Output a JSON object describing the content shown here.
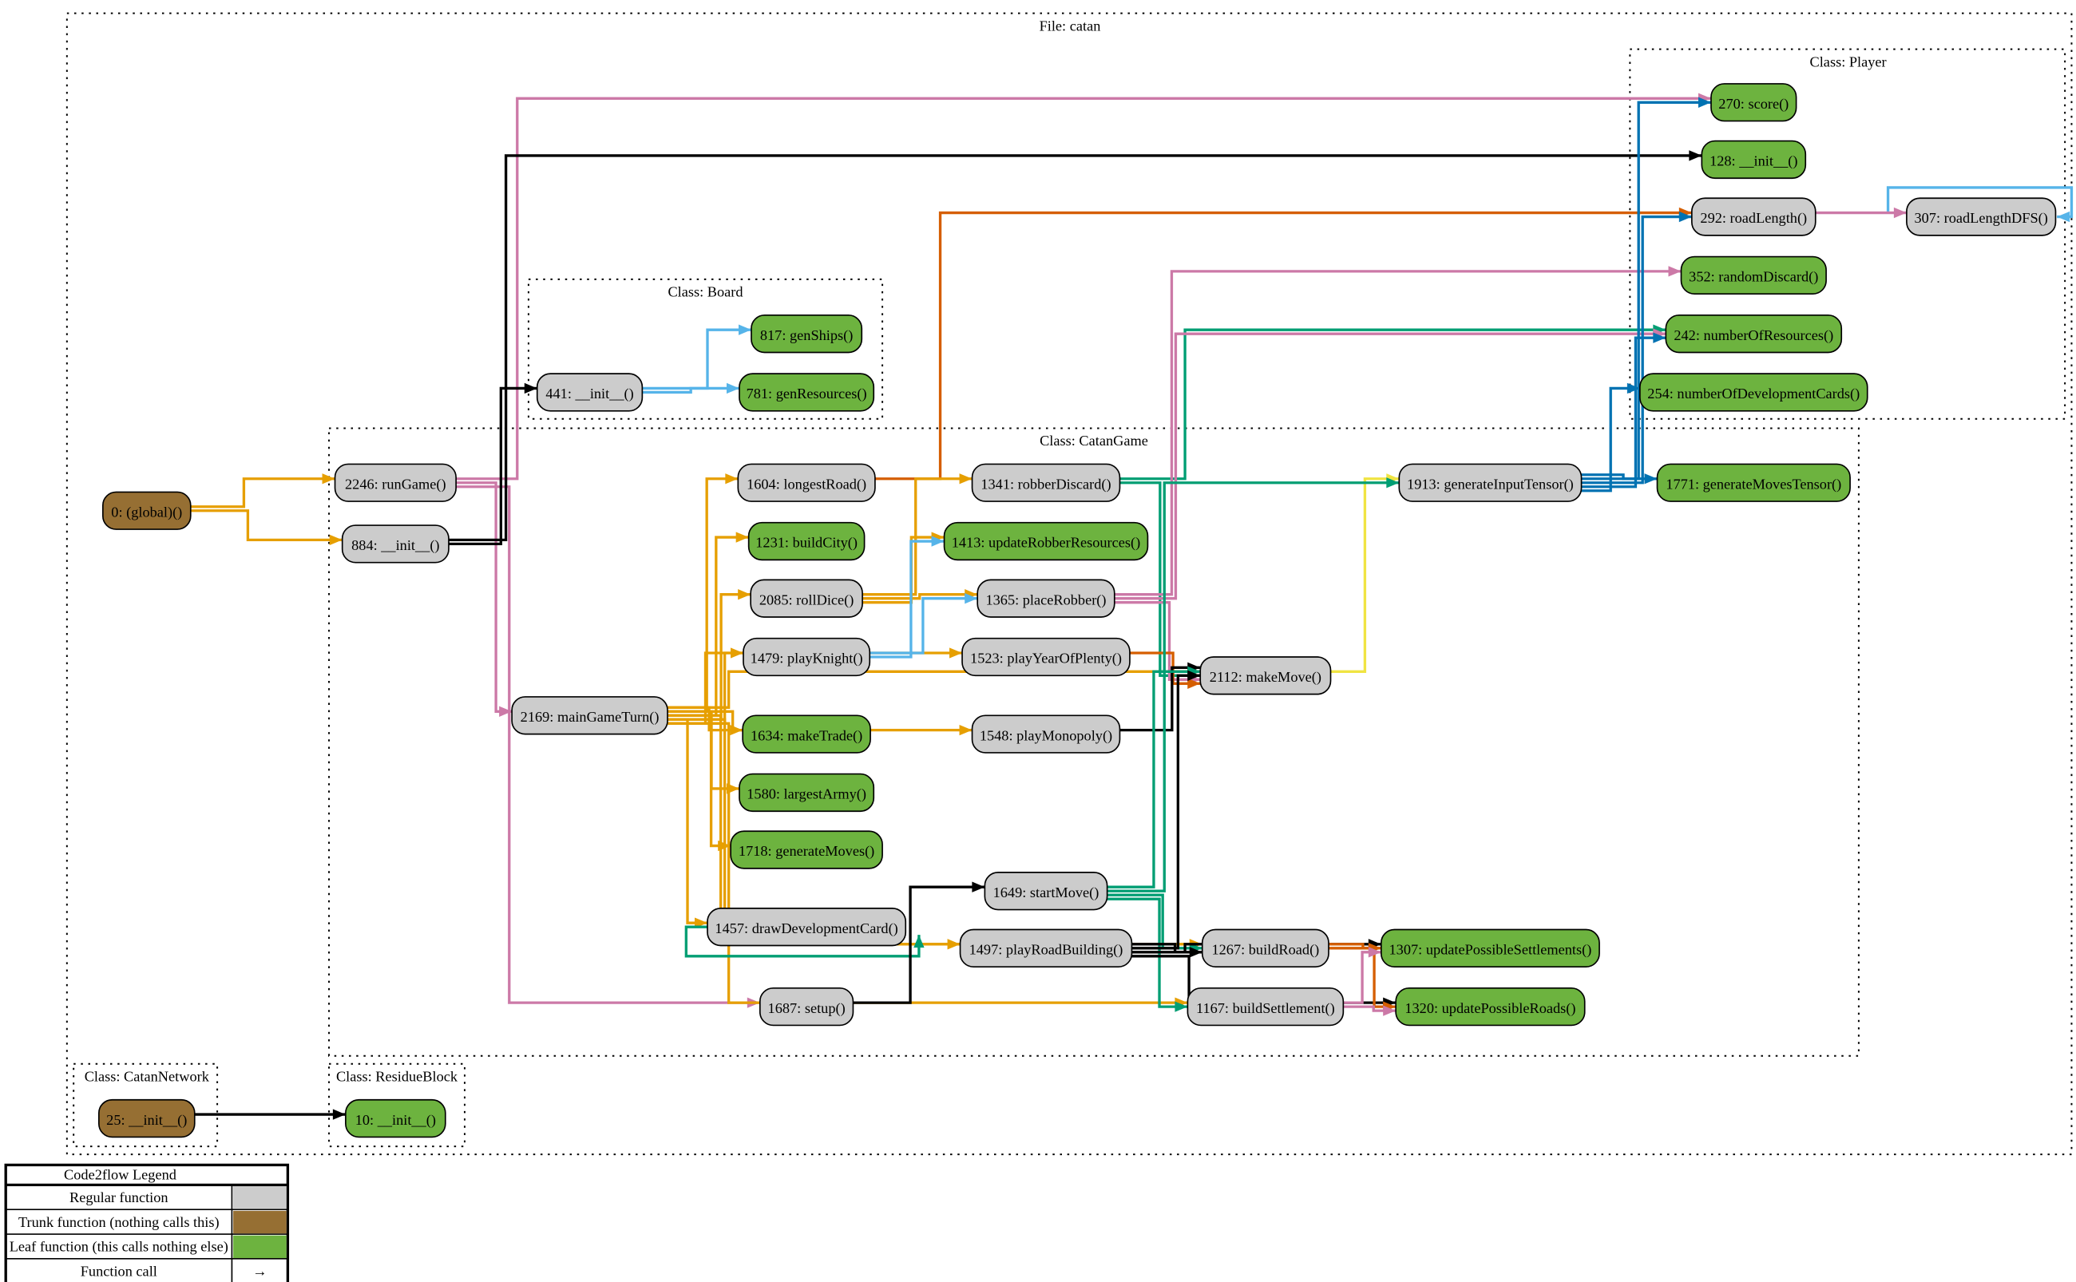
{
  "file_title": "File: catan",
  "colors": {
    "regular": "#cccccc",
    "trunk": "#966f33",
    "leaf": "#6db33f"
  },
  "clusters": [
    {
      "id": "board",
      "title": "Class: Board"
    },
    {
      "id": "player",
      "title": "Class: Player"
    },
    {
      "id": "catangame",
      "title": "Class: CatanGame"
    },
    {
      "id": "catannetwork",
      "title": "Class: CatanNetwork"
    },
    {
      "id": "residueblock",
      "title": "Class: ResidueBlock"
    }
  ],
  "nodes": [
    {
      "id": "global",
      "label": "0: (global)()",
      "kind": "trunk"
    },
    {
      "id": "runGame",
      "label": "2246: runGame()",
      "kind": "regular"
    },
    {
      "id": "init884",
      "label": "884: __init__()",
      "kind": "regular"
    },
    {
      "id": "init441",
      "label": "441: __init__()",
      "kind": "regular"
    },
    {
      "id": "genShips",
      "label": "817: genShips()",
      "kind": "leaf"
    },
    {
      "id": "genResources",
      "label": "781: genResources()",
      "kind": "leaf"
    },
    {
      "id": "score",
      "label": "270: score()",
      "kind": "leaf"
    },
    {
      "id": "init128",
      "label": "128: __init__()",
      "kind": "leaf"
    },
    {
      "id": "roadLength",
      "label": "292: roadLength()",
      "kind": "regular"
    },
    {
      "id": "roadLengthDFS",
      "label": "307: roadLengthDFS()",
      "kind": "regular"
    },
    {
      "id": "randomDiscard",
      "label": "352: randomDiscard()",
      "kind": "leaf"
    },
    {
      "id": "numberOfResources",
      "label": "242: numberOfResources()",
      "kind": "leaf"
    },
    {
      "id": "numberOfDevelopmentCards",
      "label": "254: numberOfDevelopmentCards()",
      "kind": "leaf"
    },
    {
      "id": "longestRoad",
      "label": "1604: longestRoad()",
      "kind": "regular"
    },
    {
      "id": "robberDiscard",
      "label": "1341: robberDiscard()",
      "kind": "regular"
    },
    {
      "id": "generateInputTensor",
      "label": "1913: generateInputTensor()",
      "kind": "regular"
    },
    {
      "id": "generateMovesTensor",
      "label": "1771: generateMovesTensor()",
      "kind": "leaf"
    },
    {
      "id": "buildCity",
      "label": "1231: buildCity()",
      "kind": "leaf"
    },
    {
      "id": "updateRobberResources",
      "label": "1413: updateRobberResources()",
      "kind": "leaf"
    },
    {
      "id": "rollDice",
      "label": "2085: rollDice()",
      "kind": "regular"
    },
    {
      "id": "placeRobber",
      "label": "1365: placeRobber()",
      "kind": "regular"
    },
    {
      "id": "playKnight",
      "label": "1479: playKnight()",
      "kind": "regular"
    },
    {
      "id": "playYearOfPlenty",
      "label": "1523: playYearOfPlenty()",
      "kind": "regular"
    },
    {
      "id": "makeMove",
      "label": "2112: makeMove()",
      "kind": "regular"
    },
    {
      "id": "mainGameTurn",
      "label": "2169: mainGameTurn()",
      "kind": "regular"
    },
    {
      "id": "makeTrade",
      "label": "1634: makeTrade()",
      "kind": "leaf"
    },
    {
      "id": "playMonopoly",
      "label": "1548: playMonopoly()",
      "kind": "regular"
    },
    {
      "id": "largestArmy",
      "label": "1580: largestArmy()",
      "kind": "leaf"
    },
    {
      "id": "generateMoves",
      "label": "1718: generateMoves()",
      "kind": "leaf"
    },
    {
      "id": "startMove",
      "label": "1649: startMove()",
      "kind": "regular"
    },
    {
      "id": "drawDevelopmentCard",
      "label": "1457: drawDevelopmentCard()",
      "kind": "regular"
    },
    {
      "id": "playRoadBuilding",
      "label": "1497: playRoadBuilding()",
      "kind": "regular"
    },
    {
      "id": "buildRoad",
      "label": "1267: buildRoad()",
      "kind": "regular"
    },
    {
      "id": "updatePossibleSettlements",
      "label": "1307: updatePossibleSettlements()",
      "kind": "leaf"
    },
    {
      "id": "setup",
      "label": "1687: setup()",
      "kind": "regular"
    },
    {
      "id": "buildSettlement",
      "label": "1167: buildSettlement()",
      "kind": "regular"
    },
    {
      "id": "updatePossibleRoads",
      "label": "1320: updatePossibleRoads()",
      "kind": "leaf"
    },
    {
      "id": "init25",
      "label": "25: __init__()",
      "kind": "trunk"
    },
    {
      "id": "init10",
      "label": "10: __init__()",
      "kind": "leaf"
    }
  ],
  "edges": [
    [
      "global",
      "runGame",
      "#e69f00"
    ],
    [
      "global",
      "init884",
      "#e69f00"
    ],
    [
      "runGame",
      "score",
      "#cc79a7"
    ],
    [
      "runGame",
      "mainGameTurn",
      "#cc79a7"
    ],
    [
      "runGame",
      "setup",
      "#cc79a7"
    ],
    [
      "init884",
      "init128",
      "#000000"
    ],
    [
      "init884",
      "init441",
      "#000000"
    ],
    [
      "init441",
      "genShips",
      "#56b4e9"
    ],
    [
      "init441",
      "genResources",
      "#56b4e9"
    ],
    [
      "mainGameTurn",
      "longestRoad",
      "#e69f00"
    ],
    [
      "mainGameTurn",
      "buildCity",
      "#e69f00"
    ],
    [
      "mainGameTurn",
      "rollDice",
      "#e69f00"
    ],
    [
      "mainGameTurn",
      "playKnight",
      "#e69f00"
    ],
    [
      "mainGameTurn",
      "makeTrade",
      "#e69f00"
    ],
    [
      "mainGameTurn",
      "largestArmy",
      "#e69f00"
    ],
    [
      "mainGameTurn",
      "generateMoves",
      "#e69f00"
    ],
    [
      "mainGameTurn",
      "drawDevelopmentCard",
      "#e69f00"
    ],
    [
      "mainGameTurn",
      "playYearOfPlenty",
      "#e69f00"
    ],
    [
      "mainGameTurn",
      "makeMove",
      "#e69f00"
    ],
    [
      "mainGameTurn",
      "playMonopoly",
      "#e69f00"
    ],
    [
      "mainGameTurn",
      "playRoadBuilding",
      "#e69f00"
    ],
    [
      "mainGameTurn",
      "buildRoad",
      "#e69f00"
    ],
    [
      "mainGameTurn",
      "buildSettlement",
      "#e69f00"
    ],
    [
      "longestRoad",
      "roadLength",
      "#d55e00"
    ],
    [
      "rollDice",
      "robberDiscard",
      "#e69f00"
    ],
    [
      "rollDice",
      "placeRobber",
      "#e69f00"
    ],
    [
      "rollDice",
      "updateRobberResources",
      "#e69f00"
    ],
    [
      "robberDiscard",
      "numberOfResources",
      "#009e73"
    ],
    [
      "robberDiscard",
      "makeMove",
      "#009e73"
    ],
    [
      "placeRobber",
      "randomDiscard",
      "#cc79a7"
    ],
    [
      "placeRobber",
      "numberOfResources",
      "#cc79a7"
    ],
    [
      "placeRobber",
      "makeMove",
      "#cc79a7"
    ],
    [
      "playKnight",
      "placeRobber",
      "#56b4e9"
    ],
    [
      "playKnight",
      "updateRobberResources",
      "#56b4e9"
    ],
    [
      "playYearOfPlenty",
      "makeMove",
      "#d55e00"
    ],
    [
      "playMonopoly",
      "makeMove",
      "#000000"
    ],
    [
      "makeMove",
      "generateInputTensor",
      "#f0e442"
    ],
    [
      "generateInputTensor",
      "score",
      "#0072b2"
    ],
    [
      "generateInputTensor",
      "roadLength",
      "#0072b2"
    ],
    [
      "generateInputTensor",
      "numberOfResources",
      "#0072b2"
    ],
    [
      "generateInputTensor",
      "numberOfDevelopmentCards",
      "#0072b2"
    ],
    [
      "generateInputTensor",
      "generateMovesTensor",
      "#0072b2"
    ],
    [
      "roadLength",
      "roadLengthDFS",
      "#cc79a7"
    ],
    [
      "roadLengthDFS",
      "roadLengthDFS",
      "#56b4e9"
    ],
    [
      "startMove",
      "makeMove",
      "#009e73"
    ],
    [
      "startMove",
      "generateInputTensor",
      "#009e73"
    ],
    [
      "startMove",
      "buildRoad",
      "#009e73"
    ],
    [
      "startMove",
      "buildSettlement",
      "#009e73"
    ],
    [
      "drawDevelopmentCard",
      "drawDevelopmentCard",
      "#009e73"
    ],
    [
      "setup",
      "startMove",
      "#000000"
    ],
    [
      "playRoadBuilding",
      "buildRoad",
      "#000000"
    ],
    [
      "playRoadBuilding",
      "makeMove",
      "#000000"
    ],
    [
      "playRoadBuilding",
      "updatePossibleSettlements",
      "#000000"
    ],
    [
      "playRoadBuilding",
      "updatePossibleRoads",
      "#000000"
    ],
    [
      "buildRoad",
      "updatePossibleSettlements",
      "#d55e00"
    ],
    [
      "buildRoad",
      "updatePossibleRoads",
      "#d55e00"
    ],
    [
      "buildSettlement",
      "updatePossibleSettlements",
      "#cc79a7"
    ],
    [
      "buildSettlement",
      "updatePossibleRoads",
      "#cc79a7"
    ],
    [
      "init25",
      "init10",
      "#000000"
    ]
  ],
  "legend": {
    "title": "Code2flow Legend",
    "rows": [
      {
        "label": "Regular function",
        "swatch": "#cccccc"
      },
      {
        "label": "Trunk function (nothing calls this)",
        "swatch": "#966f33"
      },
      {
        "label": "Leaf function (this calls nothing else)",
        "swatch": "#6db33f"
      },
      {
        "label": "Function call",
        "symbol": "→"
      }
    ]
  }
}
